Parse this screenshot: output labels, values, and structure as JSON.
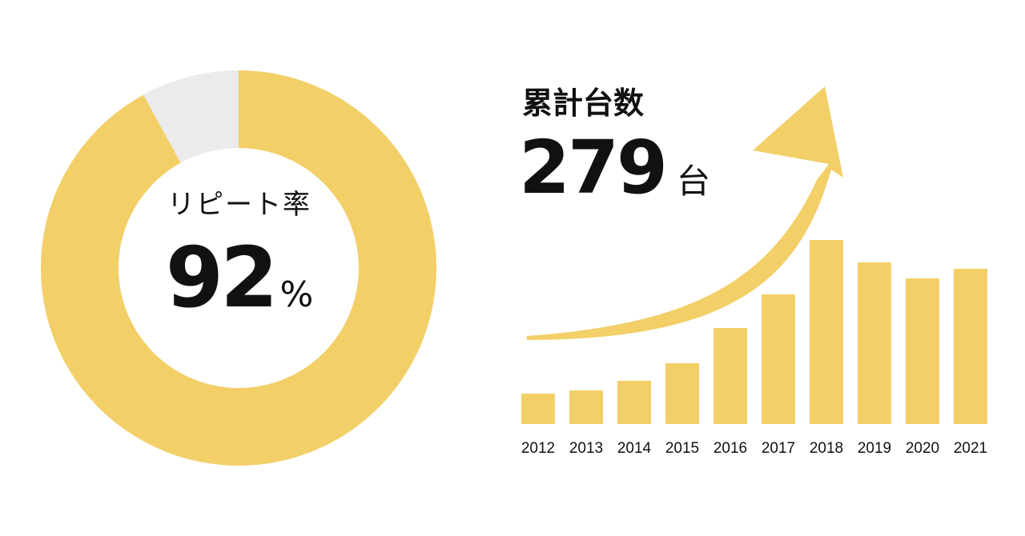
{
  "donut": {
    "label": "リピート率",
    "value": "92",
    "unit": "%"
  },
  "cumulative": {
    "label": "累計台数",
    "value": "279",
    "unit": "台"
  },
  "colors": {
    "primary": "#F3CF68",
    "remainder": "#EAEBEA",
    "text": "#111111"
  },
  "chart_data": [
    {
      "type": "pie",
      "style": "donut",
      "slices": [
        {
          "label": "",
          "value": 92,
          "color": "#F3CF68"
        },
        {
          "label": "",
          "value": 8,
          "color": "#EAEBEA"
        }
      ]
    },
    {
      "type": "bar",
      "categories": [
        "2012",
        "2013",
        "2014",
        "2015",
        "2016",
        "2017",
        "2018",
        "2019",
        "2020",
        "2021"
      ],
      "values": [
        9.5,
        10.5,
        13.5,
        19,
        30,
        40.5,
        57.5,
        50.5,
        45.5,
        48.5
      ],
      "ylim": [
        0,
        60
      ],
      "grid": false,
      "trend_arrow": true
    }
  ]
}
